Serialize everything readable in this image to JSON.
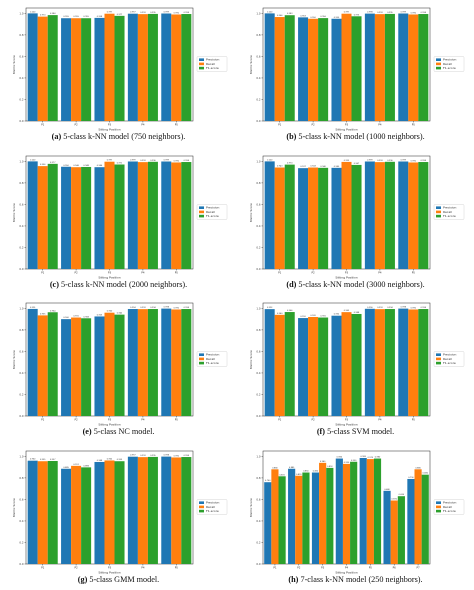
{
  "colors": {
    "precision": "#1f77b4",
    "recall": "#ff7f0e",
    "f1": "#2ca02c"
  },
  "chart_data": [
    {
      "type": "bar",
      "caption_letter": "(a)",
      "caption_text": "5-class k-NN model (750 neighbors).",
      "xlabel": "Sitting Position",
      "ylabel": "Metric Score",
      "categories": [
        "P1",
        "P2",
        "P3",
        "P4",
        "P5"
      ],
      "ylim": [
        0,
        1.05
      ],
      "yticks": [
        "0.0",
        "0.2",
        "0.4",
        "0.6",
        "0.8",
        "1.0"
      ],
      "legend": "center-right",
      "series": [
        {
          "name": "Precision",
          "values": [
            1.0,
            0.955,
            0.958,
            0.997,
            0.999
          ]
        },
        {
          "name": "Recall",
          "values": [
            0.97,
            0.955,
            0.997,
            0.993,
            0.99
          ]
        },
        {
          "name": "F1-score",
          "values": [
            0.984,
            0.955,
            0.977,
            0.995,
            0.994
          ]
        }
      ]
    },
    {
      "type": "bar",
      "caption_letter": "(b)",
      "caption_text": "5-class k-NN model (1000 neighbors).",
      "xlabel": "Sitting Position",
      "ylabel": "Metric Score",
      "categories": [
        "P1",
        "P2",
        "P3",
        "P4",
        "P5"
      ],
      "ylim": [
        0,
        1.05
      ],
      "yticks": [
        "0.0",
        "0.2",
        "0.4",
        "0.6",
        "0.8",
        "1.0"
      ],
      "legend": "center-right",
      "series": [
        {
          "name": "Precision",
          "values": [
            1.0,
            0.963,
            0.95,
            0.998,
            0.999
          ]
        },
        {
          "name": "Recall",
          "values": [
            0.966,
            0.95,
            0.997,
            0.993,
            0.99
          ]
        },
        {
          "name": "F1-score",
          "values": [
            0.983,
            0.956,
            0.973,
            0.995,
            0.994
          ]
        }
      ]
    },
    {
      "type": "bar",
      "caption_letter": "(c)",
      "caption_text": "5-class k-NN model (2000 neighbors).",
      "xlabel": "Sitting Position",
      "ylabel": "Metric Score",
      "categories": [
        "P1",
        "P2",
        "P3",
        "P4",
        "P5"
      ],
      "ylim": [
        0,
        1.05
      ],
      "yticks": [
        "0.0",
        "0.2",
        "0.4",
        "0.6",
        "0.8",
        "1.0"
      ],
      "legend": "center-right",
      "series": [
        {
          "name": "Precision",
          "values": [
            1.0,
            0.95,
            0.946,
            0.999,
            0.999
          ]
        },
        {
          "name": "Recall",
          "values": [
            0.956,
            0.946,
            0.997,
            0.993,
            0.99
          ]
        },
        {
          "name": "F1-score",
          "values": [
            0.977,
            0.948,
            0.971,
            0.996,
            0.994
          ]
        }
      ]
    },
    {
      "type": "bar",
      "caption_letter": "(d)",
      "caption_text": "5-class k-NN model (3000 neighbors).",
      "xlabel": "Sitting Position",
      "ylabel": "Metric Score",
      "categories": [
        "P1",
        "P2",
        "P3",
        "P4",
        "P5"
      ],
      "ylim": [
        0,
        1.05
      ],
      "yticks": [
        "0.0",
        "0.2",
        "0.4",
        "0.6",
        "0.8",
        "1.0"
      ],
      "legend": "center-right",
      "series": [
        {
          "name": "Precision",
          "values": [
            1.0,
            0.937,
            0.94,
            0.999,
            0.999
          ]
        },
        {
          "name": "Recall",
          "values": [
            0.943,
            0.943,
            0.995,
            0.993,
            0.99
          ]
        },
        {
          "name": "F1-score",
          "values": [
            0.97,
            0.94,
            0.967,
            0.996,
            0.994
          ]
        }
      ]
    },
    {
      "type": "bar",
      "caption_letter": "(e)",
      "caption_text": "5-class NC model.",
      "xlabel": "Sitting Position",
      "ylabel": "Metric Score",
      "categories": [
        "P1",
        "P2",
        "P3",
        "P4",
        "P5"
      ],
      "ylim": [
        0,
        1.05
      ],
      "yticks": [
        "0.0",
        "0.2",
        "0.4",
        "0.6",
        "0.8",
        "1.0"
      ],
      "legend": "center-right",
      "series": [
        {
          "name": "Precision",
          "values": [
            0.995,
            0.9,
            0.925,
            0.994,
            0.998
          ]
        },
        {
          "name": "Recall",
          "values": [
            0.935,
            0.915,
            0.96,
            0.993,
            0.99
          ]
        },
        {
          "name": "F1-score",
          "values": [
            0.964,
            0.908,
            0.942,
            0.994,
            0.994
          ]
        }
      ]
    },
    {
      "type": "bar",
      "caption_letter": "(f)",
      "caption_text": "5-class SVM model.",
      "xlabel": "Sitting Position",
      "ylabel": "Metric Score",
      "categories": [
        "P1",
        "P2",
        "P3",
        "P4",
        "P5"
      ],
      "ylim": [
        0,
        1.05
      ],
      "yticks": [
        "0.0",
        "0.2",
        "0.4",
        "0.6",
        "0.8",
        "1.0"
      ],
      "legend": "center-right",
      "series": [
        {
          "name": "Precision",
          "values": [
            0.993,
            0.91,
            0.932,
            0.996,
            0.998
          ]
        },
        {
          "name": "Recall",
          "values": [
            0.94,
            0.92,
            0.965,
            0.993,
            0.99
          ]
        },
        {
          "name": "F1-score",
          "values": [
            0.966,
            0.915,
            0.948,
            0.994,
            0.994
          ]
        }
      ]
    },
    {
      "type": "bar",
      "caption_letter": "(g)",
      "caption_text": "5-class GMM model.",
      "xlabel": "Sitting Position",
      "ylabel": "Metric Score",
      "categories": [
        "P1",
        "P2",
        "P3",
        "P4",
        "P5"
      ],
      "ylim": [
        0,
        1.05
      ],
      "yticks": [
        "0.0",
        "0.2",
        "0.4",
        "0.6",
        "0.8",
        "1.0"
      ],
      "legend": "center-right",
      "series": [
        {
          "name": "Precision",
          "values": [
            0.96,
            0.885,
            0.948,
            0.997,
            0.998
          ]
        },
        {
          "name": "Recall",
          "values": [
            0.955,
            0.912,
            0.962,
            0.993,
            0.99
          ]
        },
        {
          "name": "F1-score",
          "values": [
            0.957,
            0.898,
            0.955,
            0.995,
            0.994
          ]
        }
      ]
    },
    {
      "type": "bar",
      "caption_letter": "(h)",
      "caption_text": "7-class k-NN model (250 neighbors).",
      "xlabel": "Sitting Position",
      "ylabel": "Metric Score",
      "categories": [
        "P1",
        "P2",
        "P3",
        "P4",
        "P5",
        "P6",
        "P7"
      ],
      "ylim": [
        0,
        1.05
      ],
      "yticks": [
        "0.0",
        "0.2",
        "0.4",
        "0.6",
        "0.8",
        "1.0"
      ],
      "legend": "center-right",
      "series": [
        {
          "name": "Precision",
          "values": [
            0.76,
            0.885,
            0.85,
            0.98,
            0.985,
            0.68,
            0.79
          ]
        },
        {
          "name": "Recall",
          "values": [
            0.88,
            0.82,
            0.94,
            0.93,
            0.975,
            0.59,
            0.88
          ]
        },
        {
          "name": "F1-score",
          "values": [
            0.815,
            0.85,
            0.893,
            0.95,
            0.98,
            0.63,
            0.83
          ]
        }
      ]
    }
  ]
}
